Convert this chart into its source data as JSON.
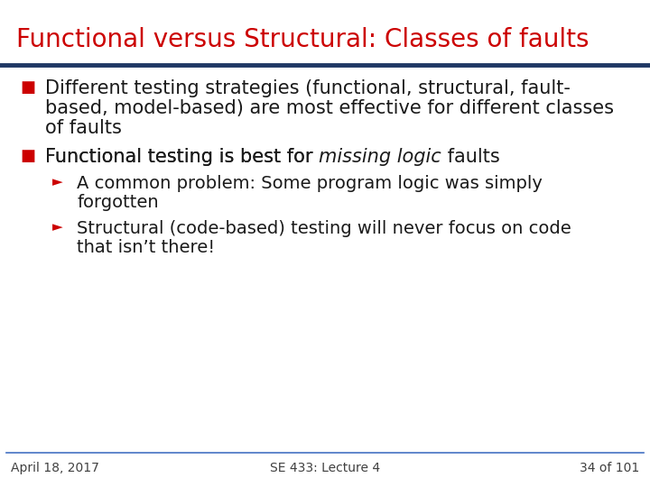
{
  "title": "Functional versus Structural: Classes of faults",
  "title_color": "#CC0000",
  "title_fontsize": 20,
  "title_bold": false,
  "bg_color": "#FFFFFF",
  "header_bar_color": "#1F3864",
  "bullet_color": "#CC0000",
  "text_color": "#1A1A1A",
  "footer_line_color": "#4472C4",
  "footer_text_color": "#404040",
  "footer_left": "April 18, 2017",
  "footer_center": "SE 433: Lecture 4",
  "footer_right": "34 of 101",
  "footer_fontsize": 10,
  "main_fontsize": 15,
  "sub_fontsize": 14,
  "bullet_fontsize": 13,
  "sub_bullet_fontsize": 11
}
